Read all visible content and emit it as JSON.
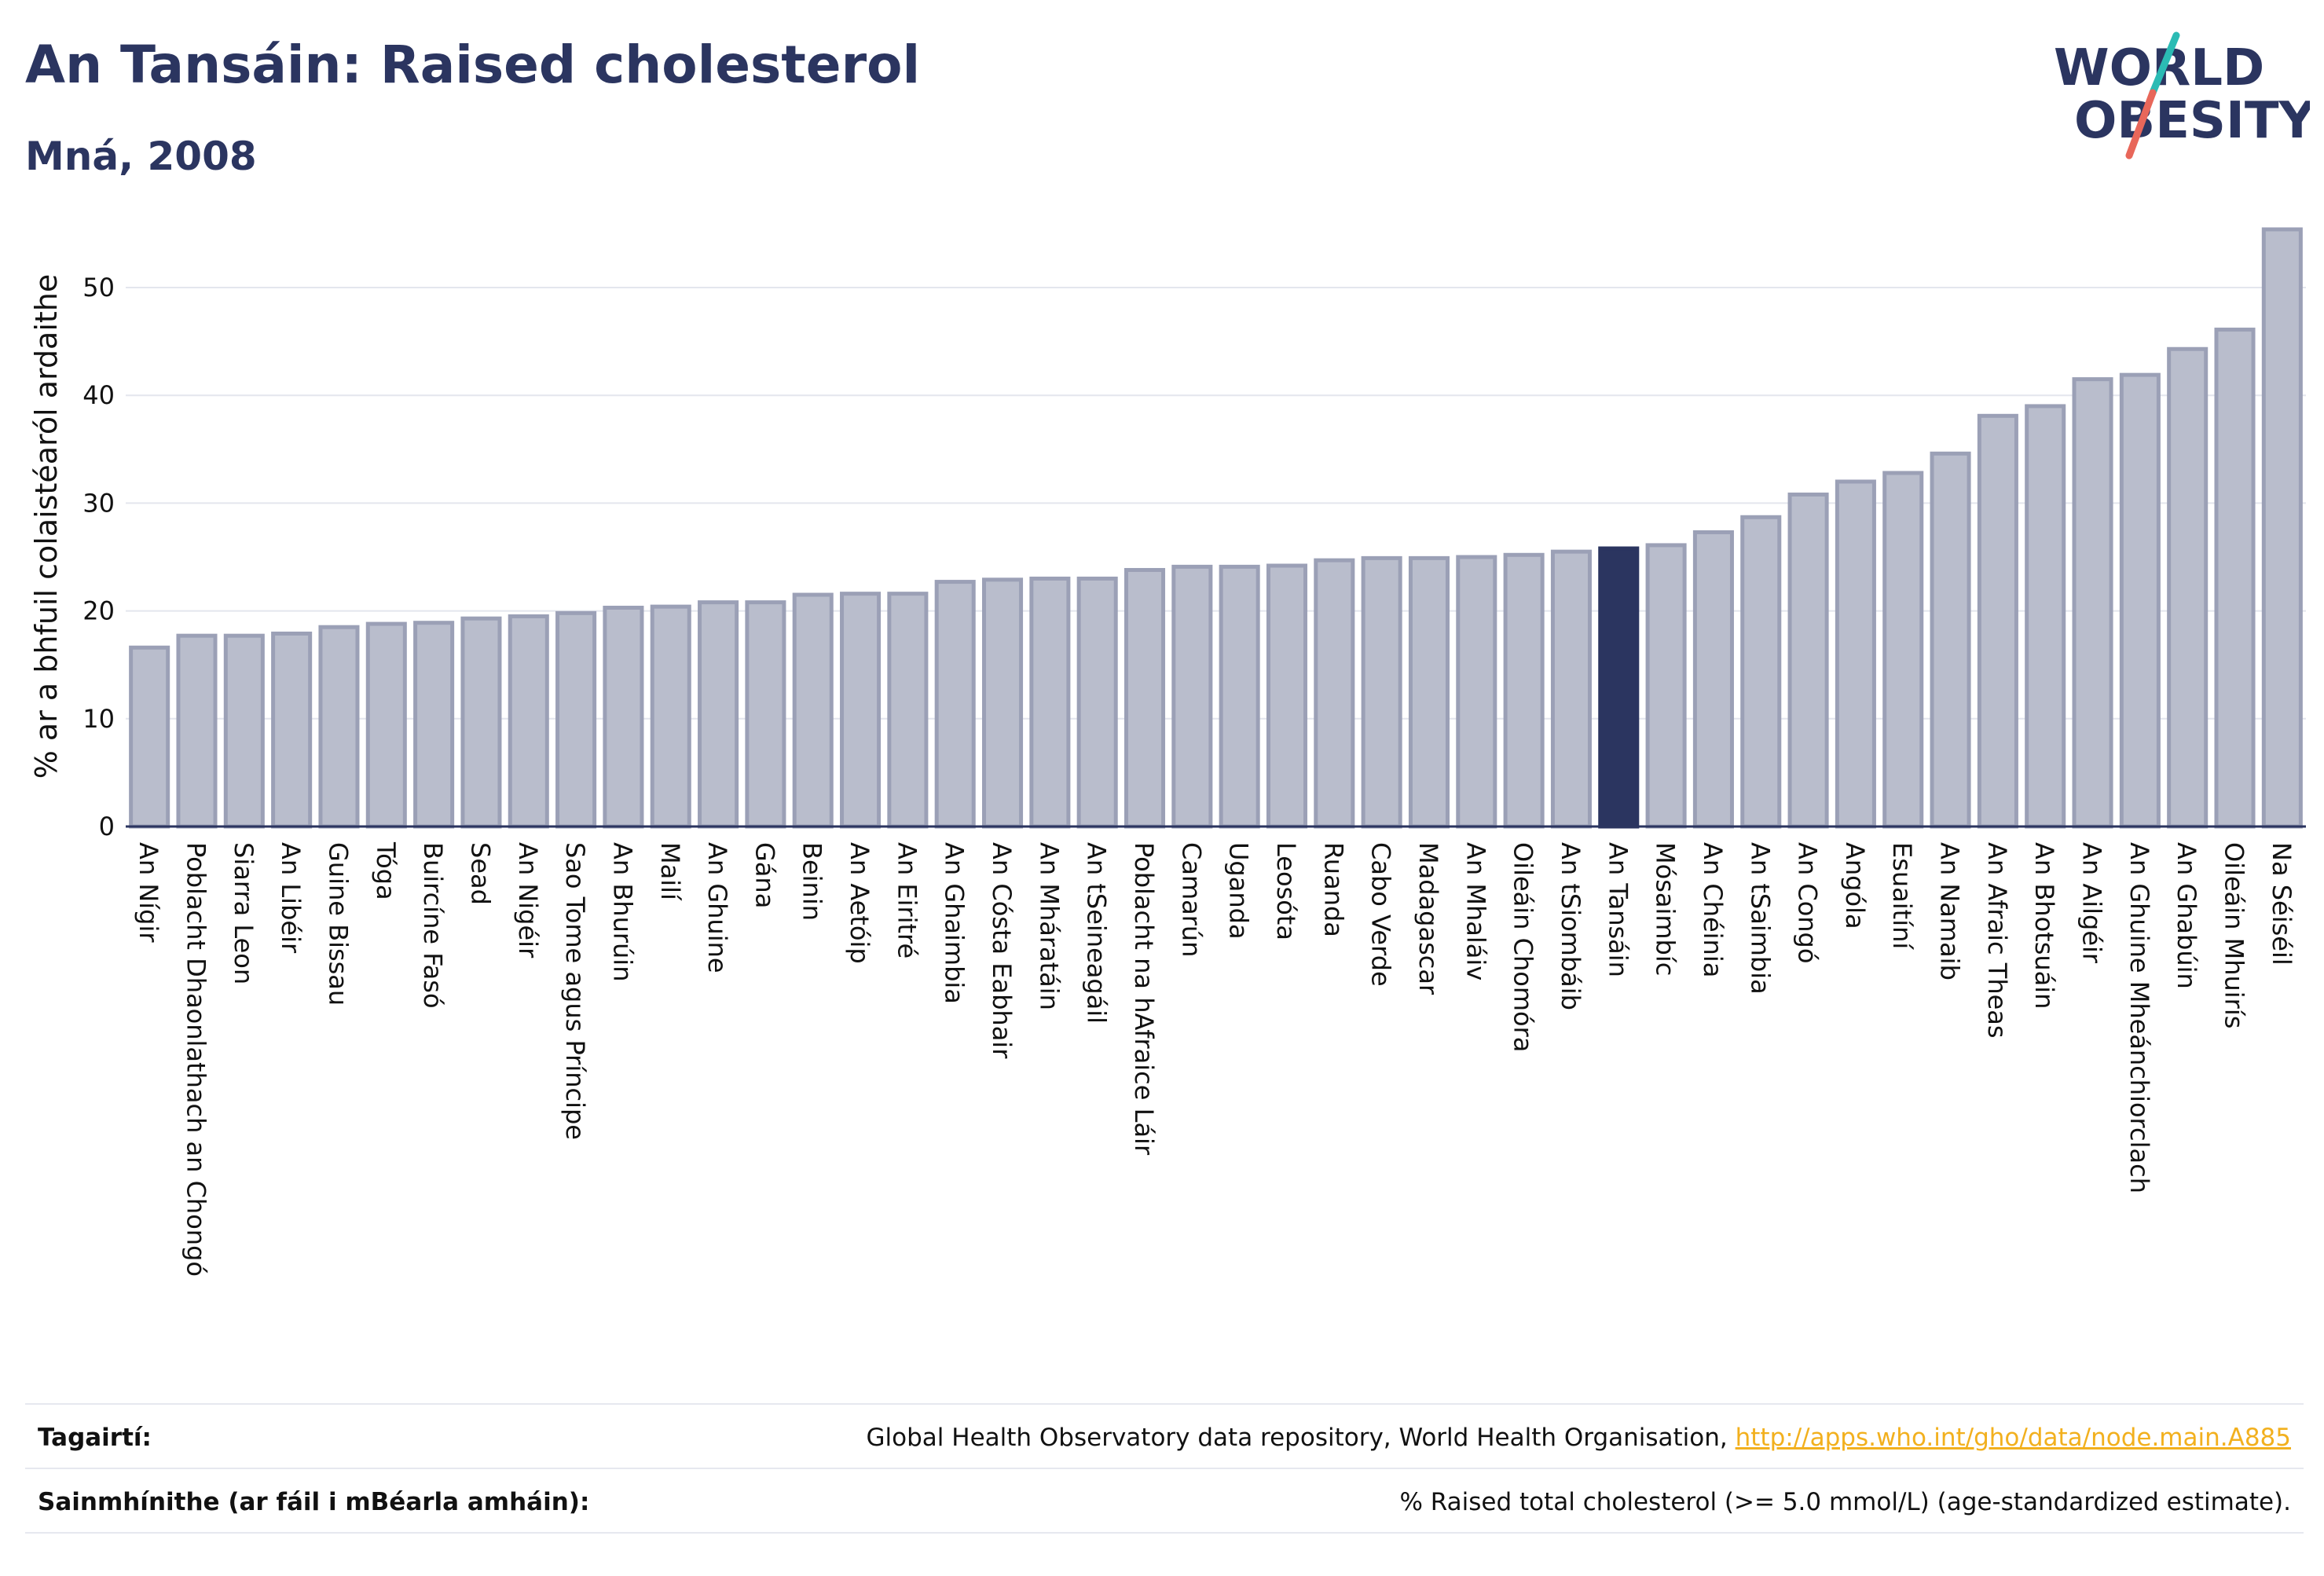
{
  "header": {
    "title": "An Tansáin: Raised cholesterol",
    "subtitle": "Mná, 2008"
  },
  "logo": {
    "line1": "WORLD",
    "line2": "OBESITY",
    "colors": {
      "text": "#2b3560",
      "slash_top": "#2bbbb4",
      "slash_bottom": "#e8675a"
    }
  },
  "chart_data": {
    "type": "bar",
    "ylabel": "% ar a bhfuil colaistéaról ardaithe",
    "xlabel": "",
    "ylim": [
      0,
      57
    ],
    "yticks": [
      0,
      10,
      20,
      30,
      40,
      50
    ],
    "grid": true,
    "highlight": "An Tansáin",
    "colors": {
      "bar": "#b9bdcc",
      "bar_edge": "#9ba0b6",
      "highlight": "#2b3560"
    },
    "categories": [
      "An Nígir",
      "Poblacht Dhaonlathach an Chongó",
      "Siarra Leon",
      "An Libéir",
      "Guine Bissau",
      "Tóga",
      "Buircíne Fasó",
      "Sead",
      "An Nigéir",
      "Sao Tome agus Príncipe",
      "An Bhurúin",
      "Mailí",
      "An Ghuine",
      "Gána",
      "Beinin",
      "An Aetóip",
      "An Eiritré",
      "An Ghaimbia",
      "An Cósta Eabhair",
      "An Mháratáin",
      "An tSeineagáil",
      "Poblacht na hAfraice Láir",
      "Camarún",
      "Uganda",
      "Leosóta",
      "Ruanda",
      "Cabo Verde",
      "Madagascar",
      "An Mhaláiv",
      "Oileáin Chomóra",
      "An tSiombáib",
      "An Tansáin",
      "Mósaimbíc",
      "An Chéinia",
      "An tSaimbia",
      "An Congó",
      "Angóla",
      "Esuaitíní",
      "An Namaib",
      "An Afraic Theas",
      "An Bhotsuáin",
      "An Ailgéir",
      "An Ghuine Mheánchiorclach",
      "An Ghabúin",
      "Oileáin Mhuirís",
      "Na Séiséil"
    ],
    "values": [
      16.6,
      17.7,
      17.7,
      17.9,
      18.5,
      18.8,
      18.9,
      19.3,
      19.5,
      19.8,
      20.3,
      20.4,
      20.8,
      20.8,
      21.5,
      21.6,
      21.6,
      22.7,
      22.9,
      23.0,
      23.0,
      23.8,
      24.1,
      24.1,
      24.2,
      24.7,
      24.9,
      24.9,
      25.0,
      25.2,
      25.5,
      25.8,
      26.1,
      27.3,
      28.7,
      30.8,
      32.0,
      32.8,
      34.6,
      38.1,
      39.0,
      41.5,
      41.9,
      44.3,
      46.1,
      55.4
    ]
  },
  "footer": {
    "references_label": "Tagairtí:",
    "references_text": "Global Health Observatory data repository, World Health Organisation, ",
    "references_link": "http://apps.who.int/gho/data/node.main.A885",
    "definitions_label": "Sainmhínithe (ar fáil i mBéarla amháin):",
    "definitions_text": "% Raised total cholesterol (>= 5.0 mmol/L) (age-standardized estimate)."
  }
}
